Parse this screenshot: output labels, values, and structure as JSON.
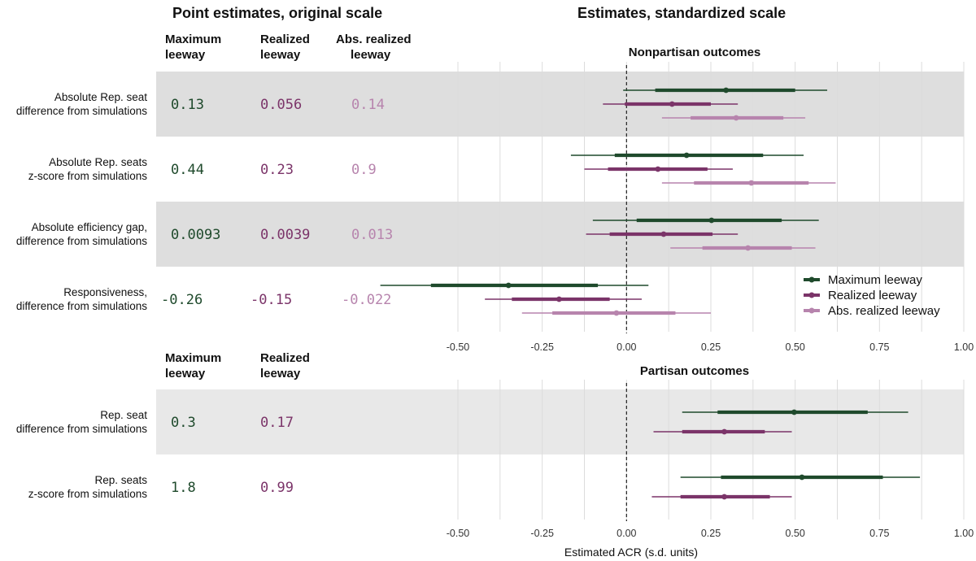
{
  "headers": {
    "left_title": "Point estimates, original scale",
    "right_title": "Estimates, standardized scale"
  },
  "colors": {
    "max": "#1f4a2c",
    "real": "#7b3469",
    "abs": "#b784ad",
    "band": "#dedede",
    "band_light": "#e8e8e8",
    "grid": "#dcdcdc"
  },
  "legend": {
    "items": [
      {
        "label": "Maximum leeway",
        "color_key": "max"
      },
      {
        "label": "Realized leeway",
        "color_key": "real"
      },
      {
        "label": "Abs. realized leeway",
        "color_key": "abs"
      }
    ]
  },
  "xaxis": {
    "label": "Estimated ACR (s.d. units)",
    "ticks": [
      "-0.50",
      "-0.25",
      "0.00",
      "0.25",
      "0.50",
      "0.75",
      "1.00"
    ],
    "tick_values": [
      -0.5,
      -0.25,
      0,
      0.25,
      0.5,
      0.75,
      1.0
    ],
    "range": [
      -0.5,
      1.0
    ],
    "reference_line": 0
  },
  "chart_data": [
    {
      "type": "forest",
      "title": "Nonpartisan outcomes",
      "column_headers": [
        {
          "line1": "Maximum",
          "line2": "leeway",
          "color_key": "max"
        },
        {
          "line1": "Realized",
          "line2": "leeway",
          "color_key": "real"
        },
        {
          "line1": "Abs. realized",
          "line2": "leeway",
          "color_key": "abs"
        }
      ],
      "rows": [
        {
          "label1": "Absolute Rep. seat",
          "label2": "difference from simulations",
          "shaded": true,
          "point_estimates": [
            "0.13",
            "0.056",
            "0.14"
          ],
          "estimates": [
            {
              "color_key": "max",
              "est": 0.295,
              "inner": [
                0.085,
                0.5
              ],
              "outer": [
                -0.01,
                0.595
              ]
            },
            {
              "color_key": "real",
              "est": 0.135,
              "inner": [
                -0.005,
                0.25
              ],
              "outer": [
                -0.07,
                0.33
              ]
            },
            {
              "color_key": "abs",
              "est": 0.325,
              "inner": [
                0.19,
                0.465
              ],
              "outer": [
                0.105,
                0.53
              ]
            }
          ]
        },
        {
          "label1": "Absolute Rep. seats",
          "label2": "z-score from simulations",
          "shaded": false,
          "point_estimates": [
            "0.44",
            "0.23",
            "0.9"
          ],
          "estimates": [
            {
              "color_key": "max",
              "est": 0.178,
              "inner": [
                -0.035,
                0.405
              ],
              "outer": [
                -0.165,
                0.525
              ]
            },
            {
              "color_key": "real",
              "est": 0.093,
              "inner": [
                -0.055,
                0.24
              ],
              "outer": [
                -0.125,
                0.315
              ]
            },
            {
              "color_key": "abs",
              "est": 0.37,
              "inner": [
                0.2,
                0.54
              ],
              "outer": [
                0.105,
                0.62
              ]
            }
          ]
        },
        {
          "label1": "Absolute efficiency gap,",
          "label2": "difference from simulations",
          "shaded": true,
          "point_estimates": [
            "0.0093",
            "0.0039",
            "0.013"
          ],
          "estimates": [
            {
              "color_key": "max",
              "est": 0.252,
              "inner": [
                0.03,
                0.46
              ],
              "outer": [
                -0.1,
                0.57
              ]
            },
            {
              "color_key": "real",
              "est": 0.11,
              "inner": [
                -0.05,
                0.255
              ],
              "outer": [
                -0.12,
                0.33
              ]
            },
            {
              "color_key": "abs",
              "est": 0.36,
              "inner": [
                0.225,
                0.49
              ],
              "outer": [
                0.13,
                0.56
              ]
            }
          ]
        },
        {
          "label1": "Responsiveness,",
          "label2": "difference from simulations",
          "shaded": false,
          "point_estimates": [
            "-0.26",
            "-0.15",
            "-0.022"
          ],
          "estimates": [
            {
              "color_key": "max",
              "est": -0.35,
              "inner": [
                -0.58,
                -0.085
              ],
              "outer": [
                -0.73,
                0.065
              ]
            },
            {
              "color_key": "real",
              "est": -0.2,
              "inner": [
                -0.34,
                -0.05
              ],
              "outer": [
                -0.42,
                0.045
              ]
            },
            {
              "color_key": "abs",
              "est": -0.03,
              "inner": [
                -0.22,
                0.145
              ],
              "outer": [
                -0.31,
                0.25
              ]
            }
          ]
        }
      ]
    },
    {
      "type": "forest",
      "title": "Partisan outcomes",
      "column_headers": [
        {
          "line1": "Maximum",
          "line2": "leeway",
          "color_key": "max"
        },
        {
          "line1": "Realized",
          "line2": "leeway",
          "color_key": "real"
        }
      ],
      "rows": [
        {
          "label1": "Rep. seat",
          "label2": "difference from simulations",
          "shaded": true,
          "point_estimates": [
            "0.3",
            "0.17"
          ],
          "estimates": [
            {
              "color_key": "max",
              "est": 0.497,
              "inner": [
                0.27,
                0.715
              ],
              "outer": [
                0.165,
                0.835
              ]
            },
            {
              "color_key": "real",
              "est": 0.29,
              "inner": [
                0.165,
                0.41
              ],
              "outer": [
                0.08,
                0.49
              ]
            }
          ]
        },
        {
          "label1": "Rep. seats",
          "label2": "z-score from simulations",
          "shaded": false,
          "point_estimates": [
            "1.8",
            "0.99"
          ],
          "estimates": [
            {
              "color_key": "max",
              "est": 0.52,
              "inner": [
                0.28,
                0.76
              ],
              "outer": [
                0.16,
                0.87
              ]
            },
            {
              "color_key": "real",
              "est": 0.29,
              "inner": [
                0.16,
                0.425
              ],
              "outer": [
                0.075,
                0.49
              ]
            }
          ]
        }
      ]
    }
  ]
}
